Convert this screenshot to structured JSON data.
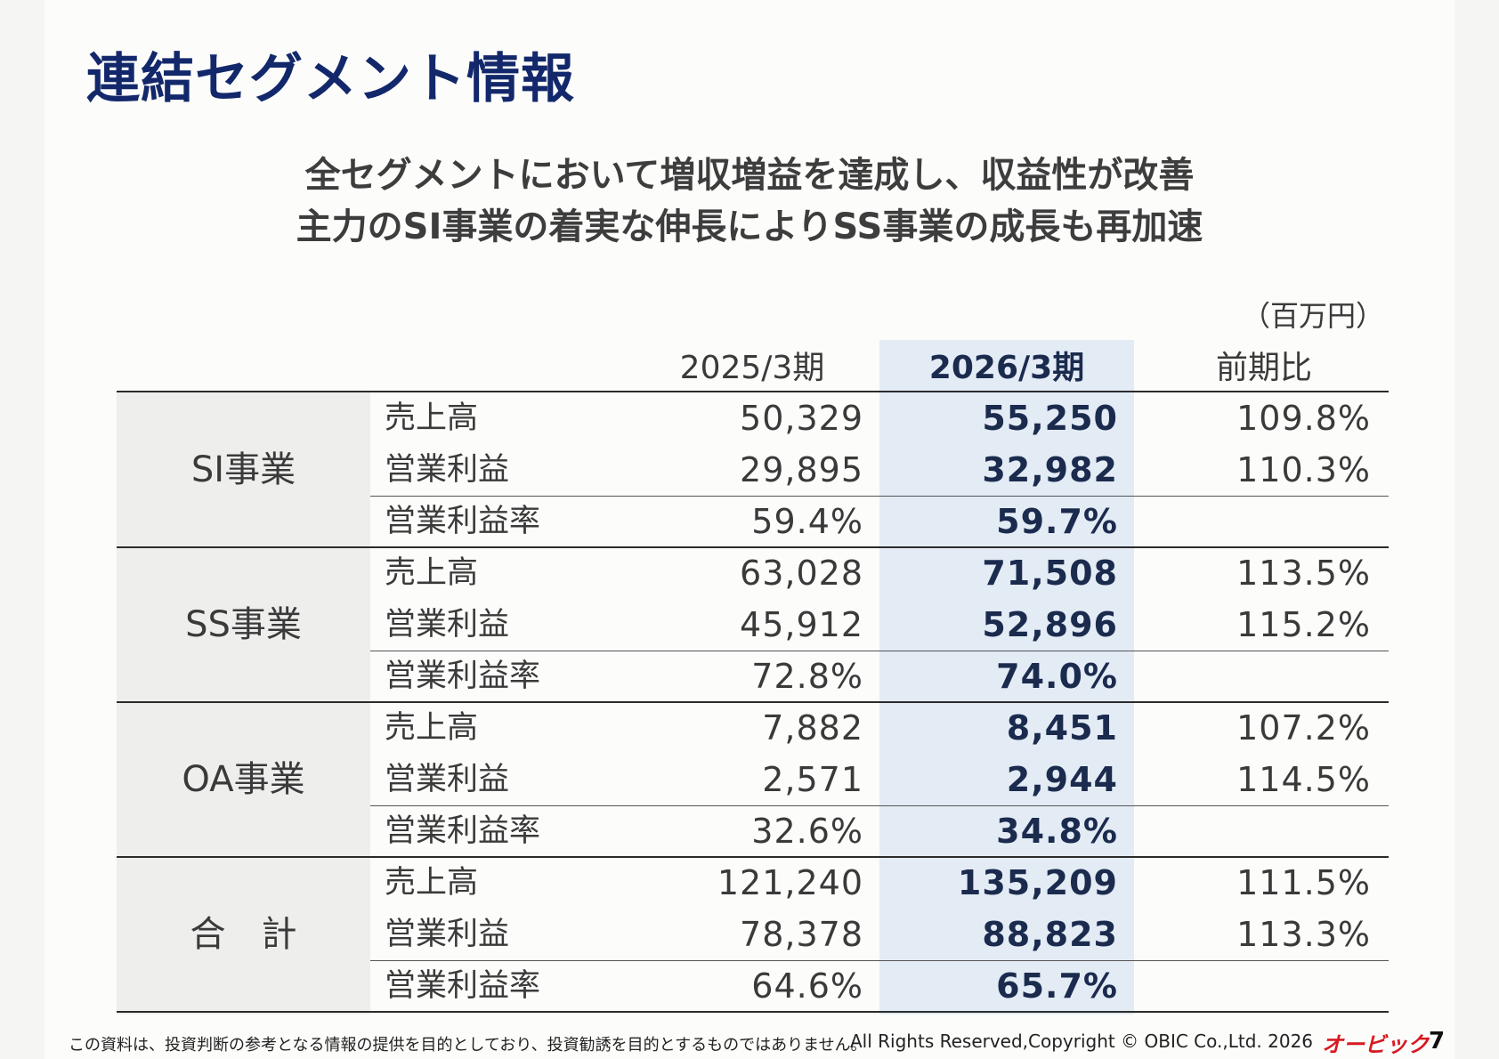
{
  "title": "連結セグメント情報",
  "headline": {
    "line1": "全セグメントにおいて増収増益を達成し、収益性が改善",
    "line2": "主力のSI事業の着実な伸長によりSS事業の成長も再加速"
  },
  "unit": "（百万円）",
  "columns": {
    "prev": "2025/3期",
    "curr": "2026/3期",
    "yoy": "前期比"
  },
  "segments": [
    {
      "name": "SI事業",
      "rows": [
        {
          "label": "売上高",
          "prev": "50,329",
          "curr": "55,250",
          "yoy": "109.8%"
        },
        {
          "label": "営業利益",
          "prev": "29,895",
          "curr": "32,982",
          "yoy": "110.3%"
        },
        {
          "label": "営業利益率",
          "prev": "59.4%",
          "curr": "59.7%",
          "yoy": ""
        }
      ]
    },
    {
      "name": "SS事業",
      "rows": [
        {
          "label": "売上高",
          "prev": "63,028",
          "curr": "71,508",
          "yoy": "113.5%"
        },
        {
          "label": "営業利益",
          "prev": "45,912",
          "curr": "52,896",
          "yoy": "115.2%"
        },
        {
          "label": "営業利益率",
          "prev": "72.8%",
          "curr": "74.0%",
          "yoy": ""
        }
      ]
    },
    {
      "name": "OA事業",
      "rows": [
        {
          "label": "売上高",
          "prev": "7,882",
          "curr": "8,451",
          "yoy": "107.2%"
        },
        {
          "label": "営業利益",
          "prev": "2,571",
          "curr": "2,944",
          "yoy": "114.5%"
        },
        {
          "label": "営業利益率",
          "prev": "32.6%",
          "curr": "34.8%",
          "yoy": ""
        }
      ]
    },
    {
      "name": "合　計",
      "rows": [
        {
          "label": "売上高",
          "prev": "121,240",
          "curr": "135,209",
          "yoy": "111.5%"
        },
        {
          "label": "営業利益",
          "prev": "78,378",
          "curr": "88,823",
          "yoy": "113.3%"
        },
        {
          "label": "営業利益率",
          "prev": "64.6%",
          "curr": "65.7%",
          "yoy": ""
        }
      ]
    }
  ],
  "footer": {
    "disclaimer": "この資料は、投資判断の参考となる情報の提供を目的としており、投資勧誘を目的とするものではありません。",
    "copyright": "All Rights Reserved,Copyright © OBIC Co.,Ltd. 2026",
    "logo": "オービック",
    "page": "7"
  },
  "colors": {
    "title": "#13286b",
    "highlight_column": "#e3ebf5",
    "logo": "#d71920"
  }
}
